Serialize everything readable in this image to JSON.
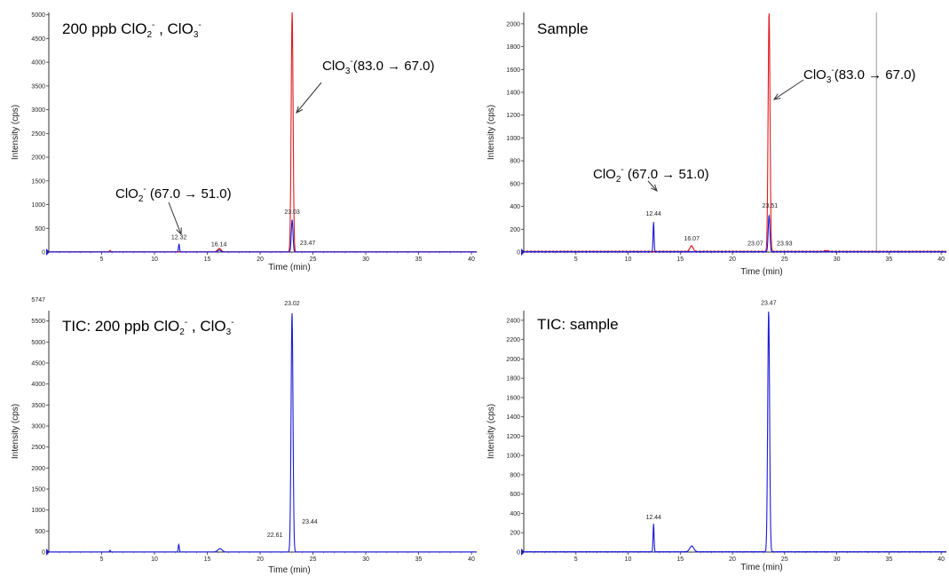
{
  "chart_data": [
    {
      "type": "line",
      "title_parts": {
        "main": "200 ppb ClO",
        "sub1": "2",
        "sup1": "-",
        "mid": " , ClO",
        "sub2": "3",
        "sup2": "-"
      },
      "xlabel": "Time (min)",
      "ylabel": "Intensity (cps)",
      "xlim": [
        0,
        40.5
      ],
      "ylim": [
        0,
        5050
      ],
      "xticks": [
        5,
        10,
        15,
        20,
        25,
        30,
        35,
        40
      ],
      "yticks": [
        0,
        500,
        1000,
        1500,
        2000,
        2500,
        3000,
        3500,
        4000,
        4500,
        5000
      ],
      "series": [
        {
          "color": "#e0191c",
          "peaks": [
            {
              "rt": 23.03,
              "height": 5050,
              "width": 0.28
            },
            {
              "rt": 16.14,
              "height": 70,
              "width": 0.5
            },
            {
              "rt": 5.8,
              "height": 30,
              "width": 0.2
            }
          ]
        },
        {
          "color": "#1a1ad8",
          "peaks": [
            {
              "rt": 23.03,
              "height": 680,
              "width": 0.25
            },
            {
              "rt": 12.32,
              "height": 170,
              "width": 0.15
            },
            {
              "rt": 16.14,
              "height": 40,
              "width": 0.4
            }
          ]
        }
      ],
      "peak_labels": [
        {
          "text": "12.32",
          "x": 12.32,
          "y": 270
        },
        {
          "text": "16.14",
          "x": 16.1,
          "y": 120
        },
        {
          "text": "23.03",
          "x": 23.03,
          "y": 800
        },
        {
          "text": "23.47",
          "x": 24.5,
          "y": 150
        }
      ],
      "annotations": [
        {
          "pre": "ClO",
          "sub": "3",
          "sup": "-",
          "post": "(83.0 → 67.0)"
        },
        {
          "pre": "ClO",
          "sub": "2",
          "sup": "-",
          "post": " (67.0 → 51.0)"
        }
      ]
    },
    {
      "type": "line",
      "title_parts": {
        "main": "Sample"
      },
      "xlabel": "Time (min)",
      "ylabel": "Intensity (cps)",
      "xlim": [
        0,
        40.5
      ],
      "ylim": [
        0,
        2100
      ],
      "xticks": [
        5,
        10,
        15,
        20,
        25,
        30,
        35,
        40
      ],
      "yticks": [
        0,
        200,
        400,
        600,
        800,
        1000,
        1200,
        1400,
        1600,
        1800,
        2000
      ],
      "series": [
        {
          "color": "#e0191c",
          "peaks": [
            {
              "rt": 23.51,
              "height": 2100,
              "width": 0.28
            },
            {
              "rt": 16.07,
              "height": 50,
              "width": 0.5
            },
            {
              "rt": 29.0,
              "height": 8,
              "width": 0.5
            }
          ]
        },
        {
          "color": "#1a1ad8",
          "peaks": [
            {
              "rt": 23.51,
              "height": 320,
              "width": 0.25
            },
            {
              "rt": 12.44,
              "height": 260,
              "width": 0.15
            }
          ]
        }
      ],
      "peak_labels": [
        {
          "text": "12.44",
          "x": 12.44,
          "y": 320
        },
        {
          "text": "16.07",
          "x": 16.1,
          "y": 100
        },
        {
          "text": "23.07",
          "x": 22.2,
          "y": 60
        },
        {
          "text": "23.51",
          "x": 23.6,
          "y": 390
        },
        {
          "text": "23.93",
          "x": 25.0,
          "y": 60
        }
      ],
      "vline": 33.8,
      "annotations": [
        {
          "pre": "ClO",
          "sub": "3",
          "sup": "-",
          "post": "(83.0 → 67.0)"
        },
        {
          "pre": "ClO",
          "sub": "2",
          "sup": "-",
          "post": " (67.0 → 51.0)"
        }
      ]
    },
    {
      "type": "line",
      "title_parts": {
        "main": "TIC: 200 ppb ClO",
        "sub1": "2",
        "sup1": "-",
        "mid": " , ClO",
        "sub2": "3",
        "sup2": "-"
      },
      "xlabel": "Time (min)",
      "ylabel": "Intensity (cps)",
      "xlim": [
        0,
        40.5
      ],
      "ylim": [
        0,
        5747
      ],
      "xticks": [
        5,
        10,
        15,
        20,
        25,
        30,
        35,
        40
      ],
      "yticks": [
        0,
        500,
        1000,
        1500,
        2000,
        2500,
        3000,
        3500,
        4000,
        4500,
        5000,
        5500
      ],
      "top_tick": "5747",
      "series": [
        {
          "color": "#1a1ad8",
          "peaks": [
            {
              "rt": 23.02,
              "height": 5700,
              "width": 0.28
            },
            {
              "rt": 12.3,
              "height": 180,
              "width": 0.15
            },
            {
              "rt": 16.2,
              "height": 80,
              "width": 0.6
            },
            {
              "rt": 5.8,
              "height": 40,
              "width": 0.15
            }
          ]
        }
      ],
      "peak_labels": [
        {
          "text": "23.02",
          "x": 23.02,
          "y": 5870
        },
        {
          "text": "22.61",
          "x": 21.4,
          "y": 360
        },
        {
          "text": "23.44",
          "x": 24.7,
          "y": 680
        }
      ]
    },
    {
      "type": "line",
      "title_parts": {
        "main": "TIC: sample"
      },
      "xlabel": "Time (min)",
      "ylabel": "Intensity (cps)",
      "xlim": [
        0,
        40.5
      ],
      "ylim": [
        0,
        2500
      ],
      "xticks": [
        5,
        10,
        15,
        20,
        25,
        30,
        35,
        40
      ],
      "yticks": [
        0,
        200,
        400,
        600,
        800,
        1000,
        1200,
        1400,
        1600,
        1800,
        2000,
        2200,
        2400
      ],
      "series": [
        {
          "color": "#1a1ad8",
          "peaks": [
            {
              "rt": 23.47,
              "height": 2500,
              "width": 0.28
            },
            {
              "rt": 12.44,
              "height": 290,
              "width": 0.15
            },
            {
              "rt": 16.1,
              "height": 60,
              "width": 0.6
            }
          ]
        }
      ],
      "peak_labels": [
        {
          "text": "23.47",
          "x": 23.47,
          "y": 2560
        },
        {
          "text": "12.44",
          "x": 12.44,
          "y": 340
        }
      ]
    }
  ]
}
